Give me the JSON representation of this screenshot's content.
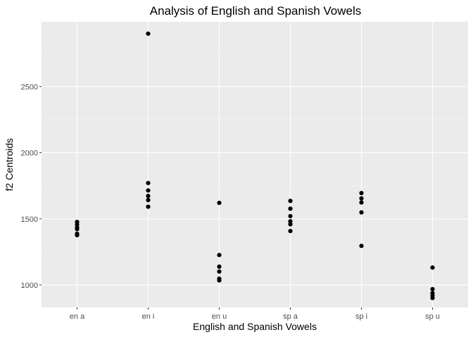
{
  "chart_data": {
    "type": "scatter",
    "title": "Analysis of English and Spanish Vowels",
    "xlabel": "English and Spanish Vowels",
    "ylabel": "f2 Centroids",
    "categories": [
      "en a",
      "en i",
      "en u",
      "sp a",
      "sp i",
      "sp u"
    ],
    "ylim": [
      830,
      2990
    ],
    "yticks": [
      1000,
      1500,
      2000,
      2500
    ],
    "grid": true,
    "points": [
      {
        "x": "en a",
        "y": 1477
      },
      {
        "x": "en a",
        "y": 1457
      },
      {
        "x": "en a",
        "y": 1436
      },
      {
        "x": "en a",
        "y": 1423
      },
      {
        "x": "en a",
        "y": 1388
      },
      {
        "x": "en a",
        "y": 1377
      },
      {
        "x": "en i",
        "y": 2900
      },
      {
        "x": "en i",
        "y": 1771
      },
      {
        "x": "en i",
        "y": 1715
      },
      {
        "x": "en i",
        "y": 1673
      },
      {
        "x": "en i",
        "y": 1642
      },
      {
        "x": "en i",
        "y": 1592
      },
      {
        "x": "en u",
        "y": 1621
      },
      {
        "x": "en u",
        "y": 1227
      },
      {
        "x": "en u",
        "y": 1139
      },
      {
        "x": "en u",
        "y": 1102
      },
      {
        "x": "en u",
        "y": 1048
      },
      {
        "x": "en u",
        "y": 1035
      },
      {
        "x": "sp a",
        "y": 1636
      },
      {
        "x": "sp a",
        "y": 1577
      },
      {
        "x": "sp a",
        "y": 1521
      },
      {
        "x": "sp a",
        "y": 1482
      },
      {
        "x": "sp a",
        "y": 1459
      },
      {
        "x": "sp a",
        "y": 1408
      },
      {
        "x": "sp i",
        "y": 1695
      },
      {
        "x": "sp i",
        "y": 1655
      },
      {
        "x": "sp i",
        "y": 1624
      },
      {
        "x": "sp i",
        "y": 1549
      },
      {
        "x": "sp i",
        "y": 1296
      },
      {
        "x": "sp u",
        "y": 1132
      },
      {
        "x": "sp u",
        "y": 969
      },
      {
        "x": "sp u",
        "y": 939
      },
      {
        "x": "sp u",
        "y": 920
      },
      {
        "x": "sp u",
        "y": 902
      }
    ],
    "colors": {
      "panel": "#ebebeb",
      "grid_major": "#ffffff",
      "grid_minor": "#f5f5f5",
      "point": "#000000",
      "tick_label": "#4d4d4d",
      "tick_mark": "#333333"
    }
  }
}
